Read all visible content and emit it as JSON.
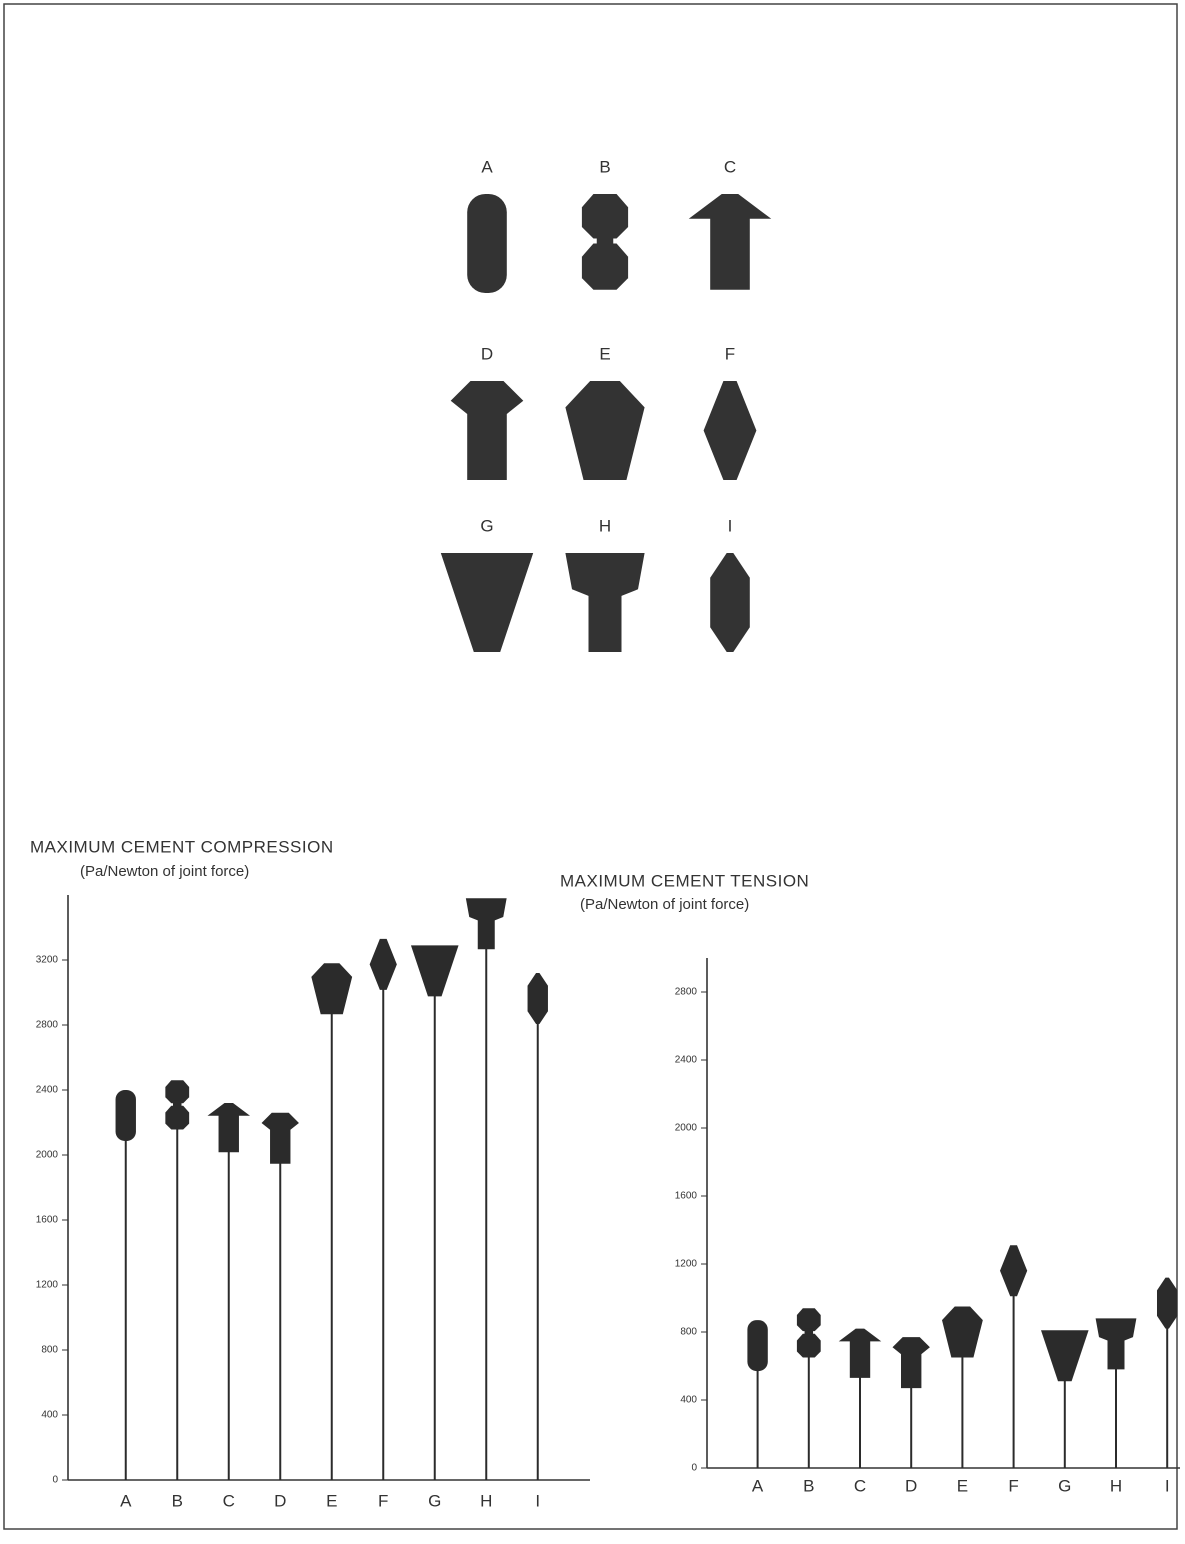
{
  "diagram": {
    "labels": [
      "A",
      "B",
      "C",
      "D",
      "E",
      "F",
      "G",
      "H",
      "I"
    ]
  },
  "chart_data": [
    {
      "type": "lollipop",
      "title": "MAXIMUM CEMENT COMPRESSION",
      "subtitle": "(Pa/Newton of joint force)",
      "categories": [
        "A",
        "B",
        "C",
        "D",
        "E",
        "F",
        "G",
        "H",
        "I"
      ],
      "values": [
        2400,
        2460,
        2320,
        2260,
        3180,
        3330,
        3290,
        3580,
        3120
      ],
      "color": "#2b2b2b",
      "ylim": [
        0,
        3600
      ],
      "yticks": [
        0,
        400,
        800,
        1200,
        1600,
        2000,
        2400,
        2800,
        3200
      ]
    },
    {
      "type": "lollipop",
      "title": "MAXIMUM CEMENT TENSION",
      "subtitle": "(Pa/Newton of joint force)",
      "categories": [
        "A",
        "B",
        "C",
        "D",
        "E",
        "F",
        "G",
        "H",
        "I"
      ],
      "values": [
        870,
        940,
        820,
        770,
        950,
        1310,
        810,
        880,
        1120
      ],
      "color": "#2b2b2b",
      "ylim": [
        0,
        3000
      ],
      "yticks": [
        0,
        400,
        800,
        1200,
        1600,
        2000,
        2400,
        2800
      ]
    }
  ]
}
